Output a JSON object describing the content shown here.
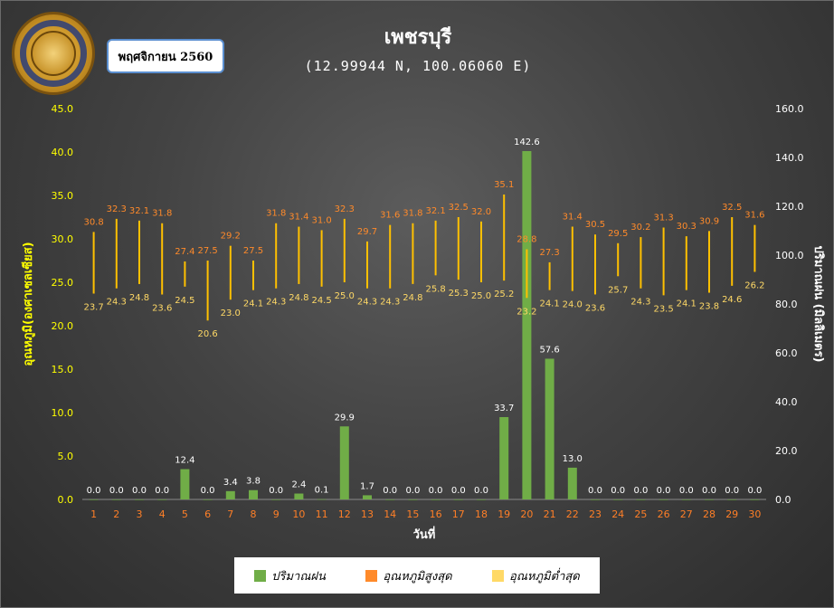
{
  "header": {
    "title": "เพชรบุรี",
    "subtitle": "(12.99944 N, 100.06060 E)",
    "month": "พฤศจิกายน 2560"
  },
  "colors": {
    "rain": "#70ad47",
    "tmax": "#ff8a2a",
    "tmin": "#ffd966",
    "range_line": "#ffc000",
    "left_axis_text": "#ffff00",
    "right_axis_text": "#ffffff",
    "x_tick_text": "#ff7f27",
    "rain_label_text": "#ffffff"
  },
  "chart_data": {
    "type": "bar",
    "x": [
      1,
      2,
      3,
      4,
      5,
      6,
      7,
      8,
      9,
      10,
      11,
      12,
      13,
      14,
      15,
      16,
      17,
      18,
      19,
      20,
      21,
      22,
      23,
      24,
      25,
      26,
      27,
      28,
      29,
      30
    ],
    "xlabel": "วันที่",
    "y_left": {
      "label": "อุณหภูมิ(องศาเซลเซียส)",
      "range": [
        0,
        45
      ],
      "ticks": [
        "0.0",
        "5.0",
        "10.0",
        "15.0",
        "20.0",
        "25.0",
        "30.0",
        "35.0",
        "40.0",
        "45.0"
      ]
    },
    "y_right": {
      "label": "ปริมาณฝน (มิลลิเมตร)",
      "range": [
        0,
        160
      ],
      "ticks": [
        "0.0",
        "20.0",
        "40.0",
        "60.0",
        "80.0",
        "100.0",
        "120.0",
        "140.0",
        "160.0"
      ]
    },
    "series": [
      {
        "name": "ปริมาณฝน",
        "type": "bar",
        "axis": "right",
        "values": [
          0.0,
          0.0,
          0.0,
          0.0,
          12.4,
          0.0,
          3.4,
          3.8,
          0.0,
          2.4,
          0.1,
          29.9,
          1.7,
          0.0,
          0.0,
          0.0,
          0.0,
          0.0,
          33.7,
          142.6,
          57.6,
          13.0,
          0.0,
          0.0,
          0.0,
          0.0,
          0.0,
          0.0,
          0.0,
          0.0
        ]
      },
      {
        "name": "อุณหภูมิสูงสุด",
        "type": "range-high",
        "axis": "left",
        "values": [
          30.8,
          32.3,
          32.1,
          31.8,
          27.4,
          27.5,
          29.2,
          27.5,
          31.8,
          31.4,
          31.0,
          32.3,
          29.7,
          31.6,
          31.8,
          32.1,
          32.5,
          32.0,
          35.1,
          28.8,
          27.3,
          31.4,
          30.5,
          29.5,
          30.2,
          31.3,
          30.3,
          30.9,
          32.5,
          31.6
        ]
      },
      {
        "name": "อุณหภูมิต่ำสุด",
        "type": "range-low",
        "axis": "left",
        "values": [
          23.7,
          24.3,
          24.8,
          23.6,
          24.5,
          20.6,
          23.0,
          24.1,
          24.3,
          24.8,
          24.5,
          25.0,
          24.3,
          24.3,
          24.8,
          25.8,
          25.3,
          25.0,
          25.2,
          23.2,
          24.1,
          24.0,
          23.6,
          25.7,
          24.3,
          23.5,
          24.1,
          23.8,
          24.6,
          26.2
        ]
      }
    ],
    "legend": {
      "position": "bottom"
    }
  }
}
